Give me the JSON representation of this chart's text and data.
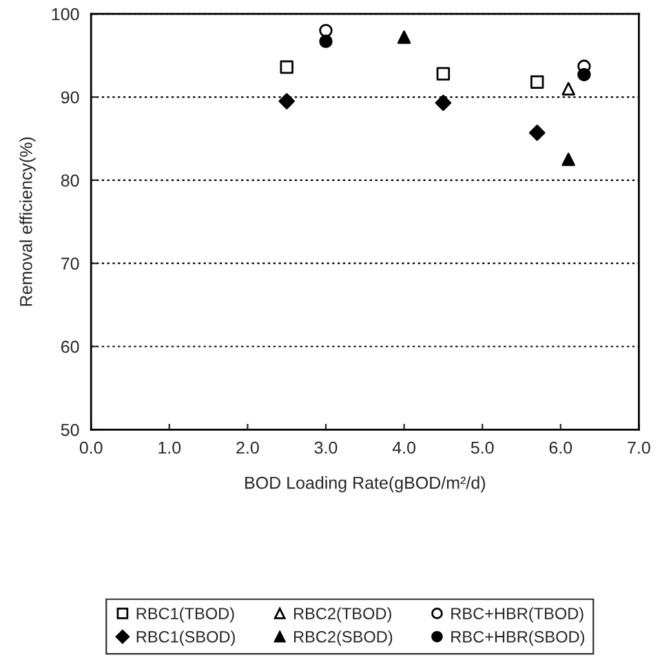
{
  "chart_data": {
    "type": "scatter",
    "xlabel": "BOD Loading Rate(gBOD/m²/d)",
    "ylabel": "Removal efficiency(%)",
    "xlim": [
      0,
      7
    ],
    "ylim": [
      50,
      100
    ],
    "xticks": [
      {
        "value": 0,
        "label": "0.0"
      },
      {
        "value": 1,
        "label": "1.0"
      },
      {
        "value": 2,
        "label": "2.0"
      },
      {
        "value": 3,
        "label": "3.0"
      },
      {
        "value": 4,
        "label": "4.0"
      },
      {
        "value": 5,
        "label": "5.0"
      },
      {
        "value": 6,
        "label": "6.0"
      },
      {
        "value": 7,
        "label": "7.0"
      }
    ],
    "yticks": [
      50,
      60,
      70,
      80,
      90,
      100
    ],
    "grid": "y",
    "legend": "bottom",
    "series": [
      {
        "name": "RBC1(TBOD)",
        "color": "#000000",
        "marker": "square",
        "x": [
          2.5,
          4.5,
          5.7
        ],
        "values": [
          93.6,
          92.8,
          91.8
        ]
      },
      {
        "name": "RBC2(TBOD)",
        "color": "#000000",
        "marker": "triangle",
        "x": [
          6.1
        ],
        "values": [
          91.0
        ]
      },
      {
        "name": "RBC+HBR(TBOD)",
        "color": "#000000",
        "marker": "circle",
        "x": [
          3.0,
          6.3
        ],
        "values": [
          98.0,
          93.7
        ]
      },
      {
        "name": "RBC1(SBOD)",
        "color": "#000000",
        "marker": "diamond",
        "x": [
          2.5,
          4.5,
          5.7
        ],
        "values": [
          89.5,
          89.3,
          85.7
        ]
      },
      {
        "name": "RBC2(SBOD)",
        "color": "#000000",
        "marker": "triangle",
        "x": [
          4.0,
          6.1
        ],
        "values": [
          97.2,
          82.5
        ]
      },
      {
        "name": "RBC+HBR(SBOD)",
        "color": "#000000",
        "marker": "circle",
        "x": [
          3.0,
          6.3
        ],
        "values": [
          96.7,
          92.7
        ]
      }
    ]
  }
}
